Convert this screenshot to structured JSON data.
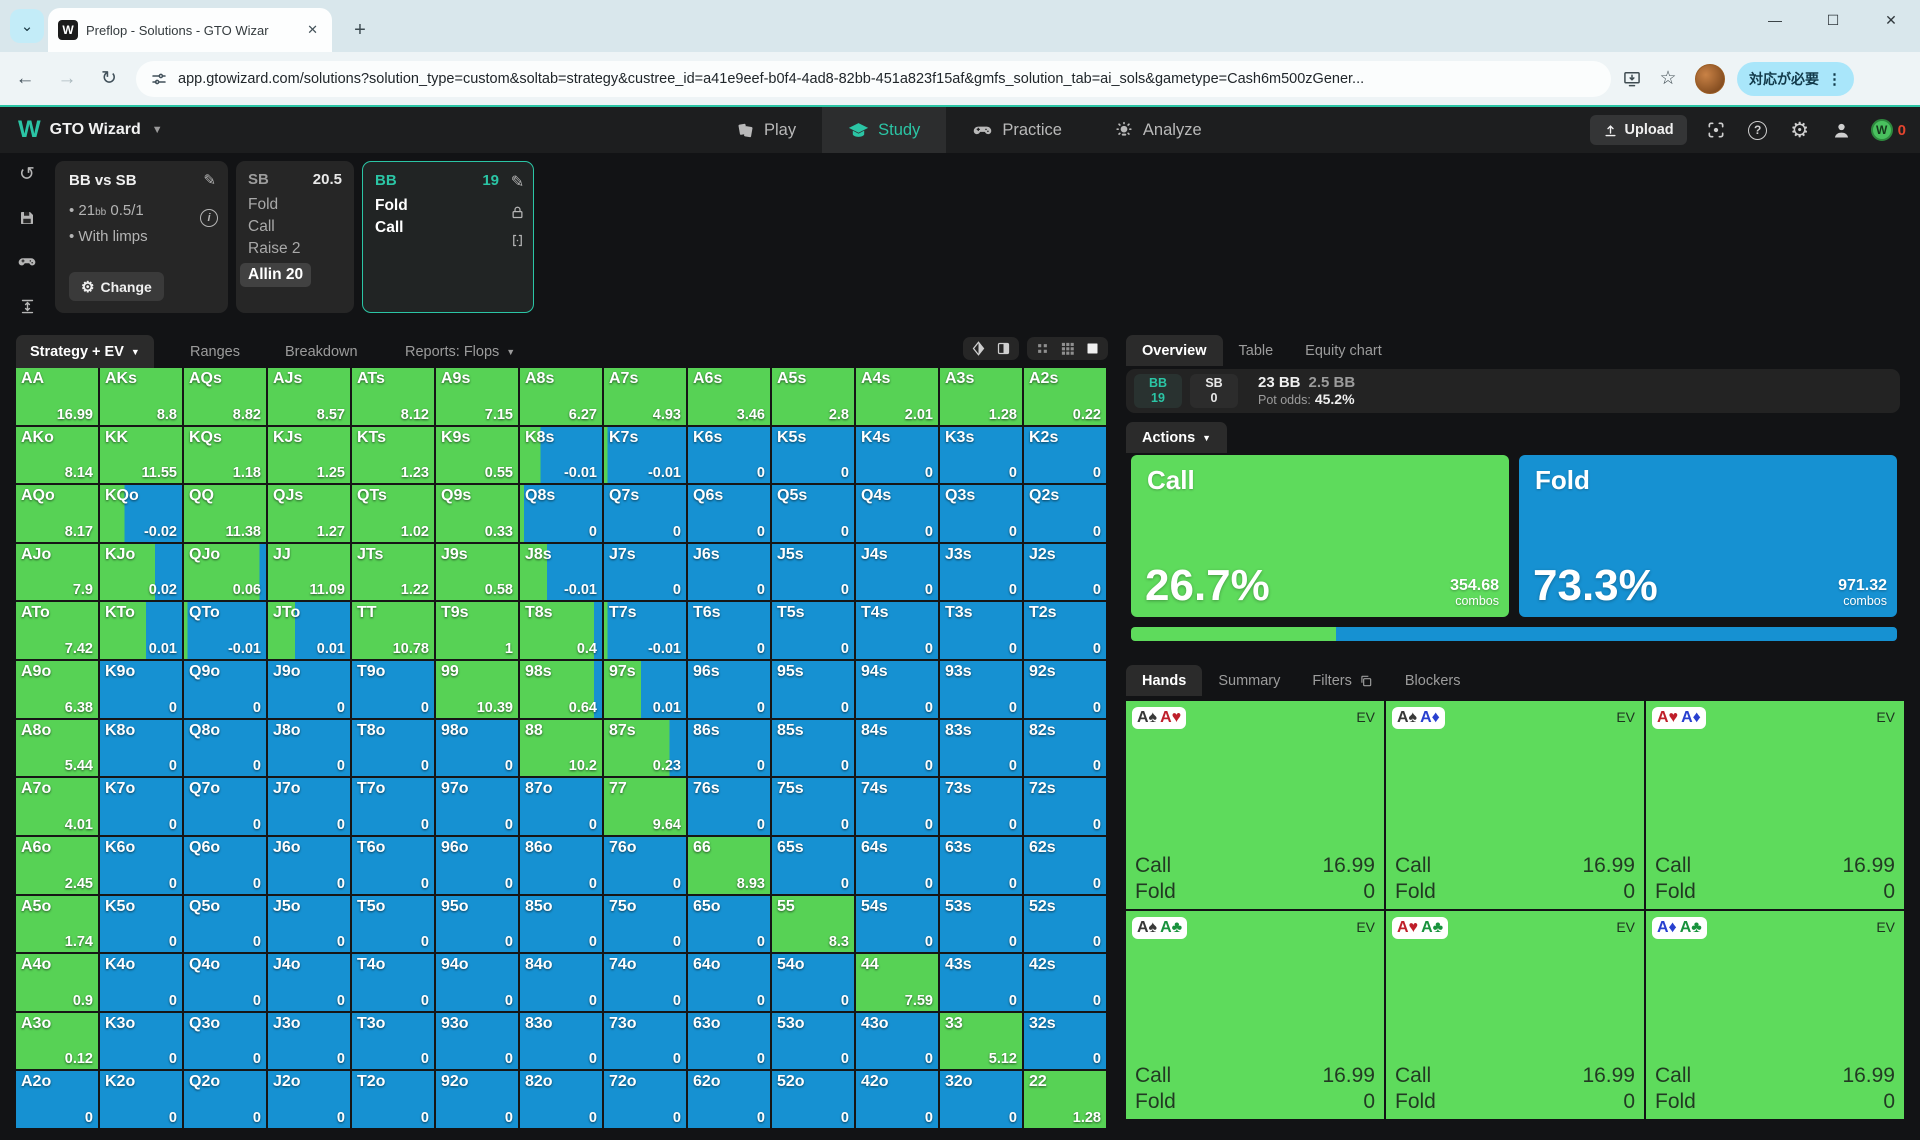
{
  "colors": {
    "teal": "#2bc5a5",
    "call_green": "#57d255",
    "fold_blue": "#1691d2",
    "card_green": "#5edb5c",
    "suit_spade": "#383838",
    "suit_heart": "#bf1f2b",
    "suit_diamond": "#2840cf",
    "suit_club": "#18923d"
  },
  "browser": {
    "tab_title": "Preflop - Solutions - GTO Wizar",
    "favicon_letter": "W",
    "url": "app.gtowizard.com/solutions?solution_type=custom&soltab=strategy&custree_id=a41e9eef-b0f4-4ad8-82bb-451a823f15af&gmfs_solution_tab=ai_sols&gametype=Cash6m500zGener...",
    "action_chip": "対応が必要"
  },
  "nav": {
    "brand": "GTO Wizard",
    "items": [
      {
        "label": "Play",
        "icon": "play-cards-icon",
        "active": false
      },
      {
        "label": "Study",
        "icon": "study-cap-icon",
        "active": true
      },
      {
        "label": "Practice",
        "icon": "practice-gamepad-icon",
        "active": false
      },
      {
        "label": "Analyze",
        "icon": "analyze-bulb-icon",
        "active": false
      }
    ],
    "upload_label": "Upload",
    "coin_letter": "W",
    "coin_count": "0"
  },
  "config": {
    "match": {
      "title": "BB vs SB",
      "bullet1_num": "21",
      "bullet1_sub": "bb",
      "bullet1_rest": " 0.5/1",
      "bullet2": "With limps",
      "change_label": "Change"
    },
    "sb": {
      "name": "SB",
      "stack": "20.5",
      "actions": [
        "Fold",
        "Call",
        "Raise 2"
      ],
      "selected_action": "Allin 20"
    },
    "bb": {
      "name": "BB",
      "stack": "19",
      "actions": [
        "Fold",
        "Call"
      ]
    }
  },
  "strategy_tabs": {
    "tab0": "Strategy + EV",
    "tab1": "Ranges",
    "tab2": "Breakdown",
    "tab3": "Reports: Flops"
  },
  "chart_data": {
    "type": "heatmap",
    "title": "BB response vs SB Allin 20 — strategy (call=green, fold=blue) with EV per hand",
    "rows": [
      "A",
      "K",
      "Q",
      "J",
      "T",
      "9",
      "8",
      "7",
      "6",
      "5",
      "4",
      "3",
      "2"
    ],
    "cols": [
      "A",
      "K",
      "Q",
      "J",
      "T",
      "9",
      "8",
      "7",
      "6",
      "5",
      "4",
      "3",
      "2"
    ],
    "legend": {
      "green": "Call",
      "blue": "Fold"
    },
    "cells": [
      [
        {
          "h": "AA",
          "v": "16.99",
          "c": 1
        },
        {
          "h": "AKs",
          "v": "8.8",
          "c": 1
        },
        {
          "h": "AQs",
          "v": "8.82",
          "c": 1
        },
        {
          "h": "AJs",
          "v": "8.57",
          "c": 1
        },
        {
          "h": "ATs",
          "v": "8.12",
          "c": 1
        },
        {
          "h": "A9s",
          "v": "7.15",
          "c": 1
        },
        {
          "h": "A8s",
          "v": "6.27",
          "c": 1
        },
        {
          "h": "A7s",
          "v": "4.93",
          "c": 1
        },
        {
          "h": "A6s",
          "v": "3.46",
          "c": 1
        },
        {
          "h": "A5s",
          "v": "2.8",
          "c": 1
        },
        {
          "h": "A4s",
          "v": "2.01",
          "c": 1
        },
        {
          "h": "A3s",
          "v": "1.28",
          "c": 1
        },
        {
          "h": "A2s",
          "v": "0.22",
          "c": 1
        }
      ],
      [
        {
          "h": "AKo",
          "v": "8.14",
          "c": 1
        },
        {
          "h": "KK",
          "v": "11.55",
          "c": 1
        },
        {
          "h": "KQs",
          "v": "1.18",
          "c": 1
        },
        {
          "h": "KJs",
          "v": "1.25",
          "c": 1
        },
        {
          "h": "KTs",
          "v": "1.23",
          "c": 1
        },
        {
          "h": "K9s",
          "v": "0.55",
          "c": 1
        },
        {
          "h": "K8s",
          "v": "-0.01",
          "c": 0.25
        },
        {
          "h": "K7s",
          "v": "-0.01",
          "c": 0.04
        },
        {
          "h": "K6s",
          "v": "0",
          "c": 0
        },
        {
          "h": "K5s",
          "v": "0",
          "c": 0
        },
        {
          "h": "K4s",
          "v": "0",
          "c": 0
        },
        {
          "h": "K3s",
          "v": "0",
          "c": 0
        },
        {
          "h": "K2s",
          "v": "0",
          "c": 0
        }
      ],
      [
        {
          "h": "AQo",
          "v": "8.17",
          "c": 1
        },
        {
          "h": "KQo",
          "v": "-0.02",
          "c": 0.3
        },
        {
          "h": "QQ",
          "v": "11.38",
          "c": 1
        },
        {
          "h": "QJs",
          "v": "1.27",
          "c": 1
        },
        {
          "h": "QTs",
          "v": "1.02",
          "c": 1
        },
        {
          "h": "Q9s",
          "v": "0.33",
          "c": 1
        },
        {
          "h": "Q8s",
          "v": "0",
          "c": 0.05
        },
        {
          "h": "Q7s",
          "v": "0",
          "c": 0
        },
        {
          "h": "Q6s",
          "v": "0",
          "c": 0
        },
        {
          "h": "Q5s",
          "v": "0",
          "c": 0
        },
        {
          "h": "Q4s",
          "v": "0",
          "c": 0
        },
        {
          "h": "Q3s",
          "v": "0",
          "c": 0
        },
        {
          "h": "Q2s",
          "v": "0",
          "c": 0
        }
      ],
      [
        {
          "h": "AJo",
          "v": "7.9",
          "c": 1
        },
        {
          "h": "KJo",
          "v": "0.02",
          "c": 0.67
        },
        {
          "h": "QJo",
          "v": "0.06",
          "c": 0.92
        },
        {
          "h": "JJ",
          "v": "11.09",
          "c": 1
        },
        {
          "h": "JTs",
          "v": "1.22",
          "c": 1
        },
        {
          "h": "J9s",
          "v": "0.58",
          "c": 1
        },
        {
          "h": "J8s",
          "v": "-0.01",
          "c": 0.33
        },
        {
          "h": "J7s",
          "v": "0",
          "c": 0
        },
        {
          "h": "J6s",
          "v": "0",
          "c": 0
        },
        {
          "h": "J5s",
          "v": "0",
          "c": 0
        },
        {
          "h": "J4s",
          "v": "0",
          "c": 0
        },
        {
          "h": "J3s",
          "v": "0",
          "c": 0
        },
        {
          "h": "J2s",
          "v": "0",
          "c": 0
        }
      ],
      [
        {
          "h": "ATo",
          "v": "7.42",
          "c": 1
        },
        {
          "h": "KTo",
          "v": "0.01",
          "c": 0.56
        },
        {
          "h": "QTo",
          "v": "-0.01",
          "c": 0.04
        },
        {
          "h": "JTo",
          "v": "0.01",
          "c": 0.33
        },
        {
          "h": "TT",
          "v": "10.78",
          "c": 1
        },
        {
          "h": "T9s",
          "v": "1",
          "c": 1
        },
        {
          "h": "T8s",
          "v": "0.4",
          "c": 0.9
        },
        {
          "h": "T7s",
          "v": "-0.01",
          "c": 0.04
        },
        {
          "h": "T6s",
          "v": "0",
          "c": 0
        },
        {
          "h": "T5s",
          "v": "0",
          "c": 0
        },
        {
          "h": "T4s",
          "v": "0",
          "c": 0
        },
        {
          "h": "T3s",
          "v": "0",
          "c": 0
        },
        {
          "h": "T2s",
          "v": "0",
          "c": 0
        }
      ],
      [
        {
          "h": "A9o",
          "v": "6.38",
          "c": 1
        },
        {
          "h": "K9o",
          "v": "0",
          "c": 0
        },
        {
          "h": "Q9o",
          "v": "0",
          "c": 0
        },
        {
          "h": "J9o",
          "v": "0",
          "c": 0
        },
        {
          "h": "T9o",
          "v": "0",
          "c": 0
        },
        {
          "h": "99",
          "v": "10.39",
          "c": 1
        },
        {
          "h": "98s",
          "v": "0.64",
          "c": 0.9
        },
        {
          "h": "97s",
          "v": "0.01",
          "c": 0.45
        },
        {
          "h": "96s",
          "v": "0",
          "c": 0
        },
        {
          "h": "95s",
          "v": "0",
          "c": 0
        },
        {
          "h": "94s",
          "v": "0",
          "c": 0
        },
        {
          "h": "93s",
          "v": "0",
          "c": 0
        },
        {
          "h": "92s",
          "v": "0",
          "c": 0
        }
      ],
      [
        {
          "h": "A8o",
          "v": "5.44",
          "c": 1
        },
        {
          "h": "K8o",
          "v": "0",
          "c": 0
        },
        {
          "h": "Q8o",
          "v": "0",
          "c": 0
        },
        {
          "h": "J8o",
          "v": "0",
          "c": 0
        },
        {
          "h": "T8o",
          "v": "0",
          "c": 0
        },
        {
          "h": "98o",
          "v": "0",
          "c": 0
        },
        {
          "h": "88",
          "v": "10.2",
          "c": 1
        },
        {
          "h": "87s",
          "v": "0.23",
          "c": 0.8
        },
        {
          "h": "86s",
          "v": "0",
          "c": 0
        },
        {
          "h": "85s",
          "v": "0",
          "c": 0
        },
        {
          "h": "84s",
          "v": "0",
          "c": 0
        },
        {
          "h": "83s",
          "v": "0",
          "c": 0
        },
        {
          "h": "82s",
          "v": "0",
          "c": 0
        }
      ],
      [
        {
          "h": "A7o",
          "v": "4.01",
          "c": 1
        },
        {
          "h": "K7o",
          "v": "0",
          "c": 0
        },
        {
          "h": "Q7o",
          "v": "0",
          "c": 0
        },
        {
          "h": "J7o",
          "v": "0",
          "c": 0
        },
        {
          "h": "T7o",
          "v": "0",
          "c": 0
        },
        {
          "h": "97o",
          "v": "0",
          "c": 0
        },
        {
          "h": "87o",
          "v": "0",
          "c": 0
        },
        {
          "h": "77",
          "v": "9.64",
          "c": 1
        },
        {
          "h": "76s",
          "v": "0",
          "c": 0
        },
        {
          "h": "75s",
          "v": "0",
          "c": 0
        },
        {
          "h": "74s",
          "v": "0",
          "c": 0
        },
        {
          "h": "73s",
          "v": "0",
          "c": 0
        },
        {
          "h": "72s",
          "v": "0",
          "c": 0
        }
      ],
      [
        {
          "h": "A6o",
          "v": "2.45",
          "c": 1
        },
        {
          "h": "K6o",
          "v": "0",
          "c": 0
        },
        {
          "h": "Q6o",
          "v": "0",
          "c": 0
        },
        {
          "h": "J6o",
          "v": "0",
          "c": 0
        },
        {
          "h": "T6o",
          "v": "0",
          "c": 0
        },
        {
          "h": "96o",
          "v": "0",
          "c": 0
        },
        {
          "h": "86o",
          "v": "0",
          "c": 0
        },
        {
          "h": "76o",
          "v": "0",
          "c": 0
        },
        {
          "h": "66",
          "v": "8.93",
          "c": 1
        },
        {
          "h": "65s",
          "v": "0",
          "c": 0
        },
        {
          "h": "64s",
          "v": "0",
          "c": 0
        },
        {
          "h": "63s",
          "v": "0",
          "c": 0
        },
        {
          "h": "62s",
          "v": "0",
          "c": 0
        }
      ],
      [
        {
          "h": "A5o",
          "v": "1.74",
          "c": 1
        },
        {
          "h": "K5o",
          "v": "0",
          "c": 0
        },
        {
          "h": "Q5o",
          "v": "0",
          "c": 0
        },
        {
          "h": "J5o",
          "v": "0",
          "c": 0
        },
        {
          "h": "T5o",
          "v": "0",
          "c": 0
        },
        {
          "h": "95o",
          "v": "0",
          "c": 0
        },
        {
          "h": "85o",
          "v": "0",
          "c": 0
        },
        {
          "h": "75o",
          "v": "0",
          "c": 0
        },
        {
          "h": "65o",
          "v": "0",
          "c": 0
        },
        {
          "h": "55",
          "v": "8.3",
          "c": 1
        },
        {
          "h": "54s",
          "v": "0",
          "c": 0
        },
        {
          "h": "53s",
          "v": "0",
          "c": 0
        },
        {
          "h": "52s",
          "v": "0",
          "c": 0
        }
      ],
      [
        {
          "h": "A4o",
          "v": "0.9",
          "c": 1
        },
        {
          "h": "K4o",
          "v": "0",
          "c": 0
        },
        {
          "h": "Q4o",
          "v": "0",
          "c": 0
        },
        {
          "h": "J4o",
          "v": "0",
          "c": 0
        },
        {
          "h": "T4o",
          "v": "0",
          "c": 0
        },
        {
          "h": "94o",
          "v": "0",
          "c": 0
        },
        {
          "h": "84o",
          "v": "0",
          "c": 0
        },
        {
          "h": "74o",
          "v": "0",
          "c": 0
        },
        {
          "h": "64o",
          "v": "0",
          "c": 0
        },
        {
          "h": "54o",
          "v": "0",
          "c": 0
        },
        {
          "h": "44",
          "v": "7.59",
          "c": 1
        },
        {
          "h": "43s",
          "v": "0",
          "c": 0
        },
        {
          "h": "42s",
          "v": "0",
          "c": 0
        }
      ],
      [
        {
          "h": "A3o",
          "v": "0.12",
          "c": 1
        },
        {
          "h": "K3o",
          "v": "0",
          "c": 0
        },
        {
          "h": "Q3o",
          "v": "0",
          "c": 0
        },
        {
          "h": "J3o",
          "v": "0",
          "c": 0
        },
        {
          "h": "T3o",
          "v": "0",
          "c": 0
        },
        {
          "h": "93o",
          "v": "0",
          "c": 0
        },
        {
          "h": "83o",
          "v": "0",
          "c": 0
        },
        {
          "h": "73o",
          "v": "0",
          "c": 0
        },
        {
          "h": "63o",
          "v": "0",
          "c": 0
        },
        {
          "h": "53o",
          "v": "0",
          "c": 0
        },
        {
          "h": "43o",
          "v": "0",
          "c": 0
        },
        {
          "h": "33",
          "v": "5.12",
          "c": 1
        },
        {
          "h": "32s",
          "v": "0",
          "c": 0
        }
      ],
      [
        {
          "h": "A2o",
          "v": "0",
          "c": 0
        },
        {
          "h": "K2o",
          "v": "0",
          "c": 0
        },
        {
          "h": "Q2o",
          "v": "0",
          "c": 0
        },
        {
          "h": "J2o",
          "v": "0",
          "c": 0
        },
        {
          "h": "T2o",
          "v": "0",
          "c": 0
        },
        {
          "h": "92o",
          "v": "0",
          "c": 0
        },
        {
          "h": "82o",
          "v": "0",
          "c": 0
        },
        {
          "h": "72o",
          "v": "0",
          "c": 0
        },
        {
          "h": "62o",
          "v": "0",
          "c": 0
        },
        {
          "h": "52o",
          "v": "0",
          "c": 0
        },
        {
          "h": "42o",
          "v": "0",
          "c": 0
        },
        {
          "h": "32o",
          "v": "0",
          "c": 0
        },
        {
          "h": "22",
          "v": "1.28",
          "c": 1
        }
      ]
    ]
  },
  "overview": {
    "tab0": "Overview",
    "tab1": "Table",
    "tab2": "Equity chart",
    "stack_bb_name": "BB",
    "stack_bb_value": "19",
    "stack_sb_name": "SB",
    "stack_sb_value": "0",
    "pot": "23 BB",
    "bet": "2.5 BB",
    "pot_odds_label": "Pot odds:",
    "pot_odds": "45.2%",
    "actions_label": "Actions",
    "combos_label": "combos",
    "actions": [
      {
        "name": "Call",
        "pct": "26.7%",
        "combos": "354.68",
        "color": "#5edb5c",
        "share": 0.267
      },
      {
        "name": "Fold",
        "pct": "73.3%",
        "combos": "971.32",
        "color": "#1691d2",
        "share": 0.733
      }
    ]
  },
  "hands_panel": {
    "tab0": "Hands",
    "tab1": "Summary",
    "tab2": "Filters",
    "tab3": "Blockers",
    "ev_label": "EV",
    "cards": [
      {
        "combo": [
          {
            "r": "A",
            "s": "spade"
          },
          {
            "r": "A",
            "s": "heart"
          }
        ],
        "rows": [
          [
            "Call",
            "16.99"
          ],
          [
            "Fold",
            "0"
          ]
        ]
      },
      {
        "combo": [
          {
            "r": "A",
            "s": "spade"
          },
          {
            "r": "A",
            "s": "diamond"
          }
        ],
        "rows": [
          [
            "Call",
            "16.99"
          ],
          [
            "Fold",
            "0"
          ]
        ]
      },
      {
        "combo": [
          {
            "r": "A",
            "s": "heart"
          },
          {
            "r": "A",
            "s": "diamond"
          }
        ],
        "rows": [
          [
            "Call",
            "16.99"
          ],
          [
            "Fold",
            "0"
          ]
        ]
      },
      {
        "combo": [
          {
            "r": "A",
            "s": "spade"
          },
          {
            "r": "A",
            "s": "club"
          }
        ],
        "rows": [
          [
            "Call",
            "16.99"
          ],
          [
            "Fold",
            "0"
          ]
        ]
      },
      {
        "combo": [
          {
            "r": "A",
            "s": "heart"
          },
          {
            "r": "A",
            "s": "club"
          }
        ],
        "rows": [
          [
            "Call",
            "16.99"
          ],
          [
            "Fold",
            "0"
          ]
        ]
      },
      {
        "combo": [
          {
            "r": "A",
            "s": "diamond"
          },
          {
            "r": "A",
            "s": "club"
          }
        ],
        "rows": [
          [
            "Call",
            "16.99"
          ],
          [
            "Fold",
            "0"
          ]
        ]
      }
    ]
  }
}
